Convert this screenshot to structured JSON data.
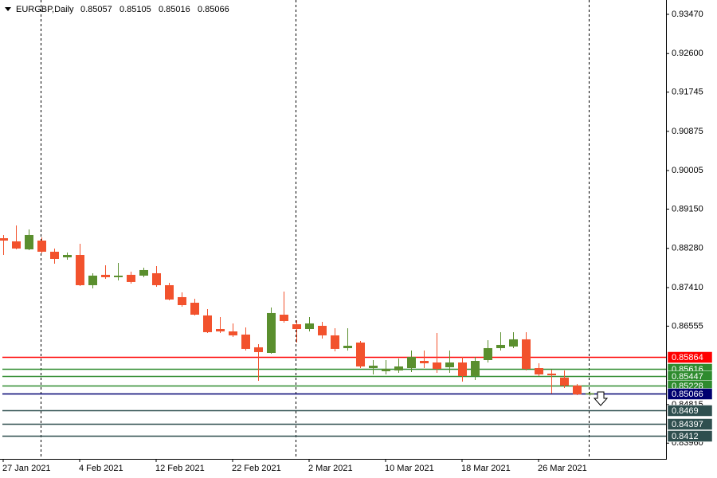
{
  "chart_data": {
    "type": "candlestick",
    "title": "EURGBP,Daily",
    "categories": [
      "27 Jan 2021",
      null,
      null,
      null,
      null,
      null,
      "4 Feb 2021",
      null,
      null,
      null,
      null,
      null,
      "12 Feb 2021",
      null,
      null,
      null,
      null,
      null,
      "22 Feb 2021",
      null,
      null,
      null,
      null,
      null,
      "2 Mar 2021",
      null,
      null,
      null,
      null,
      null,
      "10 Mar 2021",
      null,
      null,
      null,
      null,
      null,
      "18 Mar 2021",
      null,
      null,
      null,
      null,
      null,
      "26 Mar 2021",
      null,
      null,
      null,
      null
    ],
    "open": [
      0.88505,
      0.88435,
      0.88258,
      0.88452,
      0.88205,
      0.88081,
      0.88134,
      0.87463,
      0.87693,
      0.8764,
      0.87693,
      0.87675,
      0.87728,
      0.87463,
      0.87198,
      0.87074,
      0.86792,
      0.86491,
      0.86438,
      0.86368,
      0.86085,
      0.85961,
      0.86809,
      0.86597,
      0.86491,
      0.86562,
      0.8635,
      0.86067,
      0.86191,
      0.85625,
      0.85555,
      0.85572,
      0.85625,
      0.85784,
      0.85749,
      0.85643,
      0.85749,
      0.85449,
      0.85802,
      0.86067,
      0.86103,
      0.86262,
      0.85625,
      0.85502,
      0.85413,
      0.85237,
      0.85057
    ],
    "high": [
      0.88576,
      0.88788,
      0.887,
      0.88523,
      0.88276,
      0.88187,
      0.88382,
      0.87728,
      0.87905,
      0.87958,
      0.87763,
      0.87852,
      0.87887,
      0.87516,
      0.87304,
      0.87163,
      0.86933,
      0.86756,
      0.86615,
      0.86527,
      0.86156,
      0.86968,
      0.87322,
      0.86686,
      0.86756,
      0.8665,
      0.86509,
      0.86509,
      0.86226,
      0.85802,
      0.85802,
      0.85837,
      0.86014,
      0.86014,
      0.86403,
      0.86014,
      0.85873,
      0.85873,
      0.86244,
      0.86421,
      0.86421,
      0.86421,
      0.85731,
      0.8559,
      0.85572,
      0.85272,
      0.85105
    ],
    "low": [
      0.88134,
      0.88258,
      0.8824,
      0.8817,
      0.8794,
      0.88028,
      0.87445,
      0.87392,
      0.87604,
      0.87569,
      0.87498,
      0.8764,
      0.87428,
      0.87127,
      0.86986,
      0.86792,
      0.86403,
      0.86403,
      0.86315,
      0.86014,
      0.85343,
      0.85943,
      0.86633,
      0.86191,
      0.86438,
      0.86279,
      0.85997,
      0.86014,
      0.85625,
      0.85484,
      0.85484,
      0.85519,
      0.85537,
      0.85625,
      0.85519,
      0.85519,
      0.85325,
      0.8536,
      0.85749,
      0.86014,
      0.86067,
      0.85572,
      0.85449,
      0.8506,
      0.85184,
      0.85025,
      0.85016
    ],
    "close": [
      0.88452,
      0.88276,
      0.88576,
      0.88205,
      0.88046,
      0.88134,
      0.87463,
      0.87675,
      0.8764,
      0.87675,
      0.87534,
      0.87799,
      0.87463,
      0.87145,
      0.87021,
      0.86809,
      0.86421,
      0.86438,
      0.8635,
      0.8605,
      0.85979,
      0.86845,
      0.86668,
      0.86491,
      0.86615,
      0.8635,
      0.8605,
      0.8612,
      0.85661,
      0.85678,
      0.85608,
      0.85661,
      0.85873,
      0.85731,
      0.85608,
      0.85749,
      0.85449,
      0.85784,
      0.86067,
      0.86138,
      0.86262,
      0.85608,
      0.85484,
      0.85466,
      0.85237,
      0.85042,
      0.85066
    ],
    "up_color": "#5a8f2e",
    "down_color": "#f2522d",
    "ylim": [
      0.83611,
      0.93788
    ],
    "yticks": [
      {
        "value": 0.9347,
        "label": "0.93470"
      },
      {
        "value": 0.926,
        "label": "0.92600"
      },
      {
        "value": 0.91745,
        "label": "0.91745"
      },
      {
        "value": 0.90875,
        "label": "0.90875"
      },
      {
        "value": 0.90005,
        "label": "0.90005"
      },
      {
        "value": 0.8915,
        "label": "0.89150"
      },
      {
        "value": 0.8828,
        "label": "0.88280"
      },
      {
        "value": 0.8741,
        "label": "0.87410"
      },
      {
        "value": 0.86555,
        "label": "0.86555"
      },
      {
        "value": 0.84815,
        "label": "0.84815"
      },
      {
        "value": 0.8396,
        "label": "0.83960"
      }
    ],
    "levels": [
      {
        "value": 0.85864,
        "color": "#ff0000"
      },
      {
        "value": 0.85616,
        "color": "#2e8b2e"
      },
      {
        "value": 0.85447,
        "color": "#2e8b2e"
      },
      {
        "value": 0.85228,
        "color": "#2e8b2e"
      },
      {
        "value": 0.85066,
        "color": "#000070"
      },
      {
        "value": 0.8469,
        "color": "#2f4f4f"
      },
      {
        "value": 0.84397,
        "color": "#2f4f4f"
      },
      {
        "value": 0.8412,
        "color": "#2f4f4f"
      }
    ]
  }
}
